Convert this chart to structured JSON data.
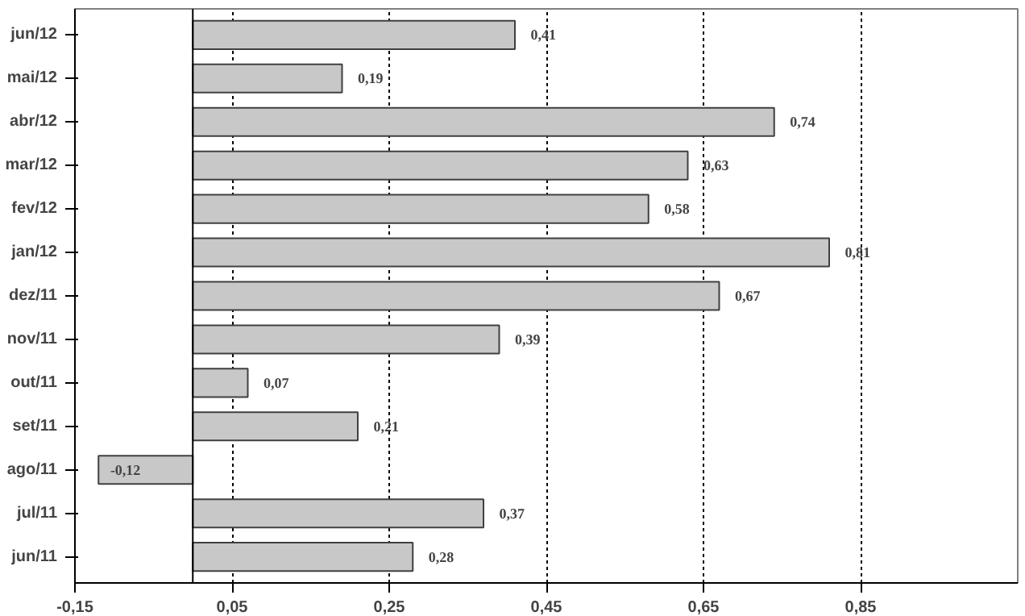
{
  "chart_data": {
    "type": "bar",
    "orientation": "horizontal",
    "categories": [
      "jun/12",
      "mai/12",
      "abr/12",
      "mar/12",
      "fev/12",
      "jan/12",
      "dez/11",
      "nov/11",
      "out/11",
      "set/11",
      "ago/11",
      "jul/11",
      "jun/11"
    ],
    "values": [
      0.41,
      0.19,
      0.74,
      0.63,
      0.58,
      0.81,
      0.67,
      0.39,
      0.07,
      0.21,
      -0.12,
      0.37,
      0.28
    ],
    "value_labels": [
      "0,41",
      "0,19",
      "0,74",
      "0,63",
      "0,58",
      "0,81",
      "0,67",
      "0,39",
      "0,07",
      "0,21",
      "-0,12",
      "0,37",
      "0,28"
    ],
    "color": "#c8c8c8",
    "xlim": [
      -0.15,
      1.05
    ],
    "xticks": [
      {
        "value": -0.15,
        "label": "-0,15"
      },
      {
        "value": 0.05,
        "label": "0,05"
      },
      {
        "value": 0.25,
        "label": "0,25"
      },
      {
        "value": 0.45,
        "label": "0,45"
      },
      {
        "value": 0.65,
        "label": "0,65"
      },
      {
        "value": 0.85,
        "label": "0,85"
      }
    ],
    "grid": "x",
    "ref_lines": [
      {
        "axis": "x",
        "value": 0,
        "color": "#000000"
      }
    ]
  }
}
